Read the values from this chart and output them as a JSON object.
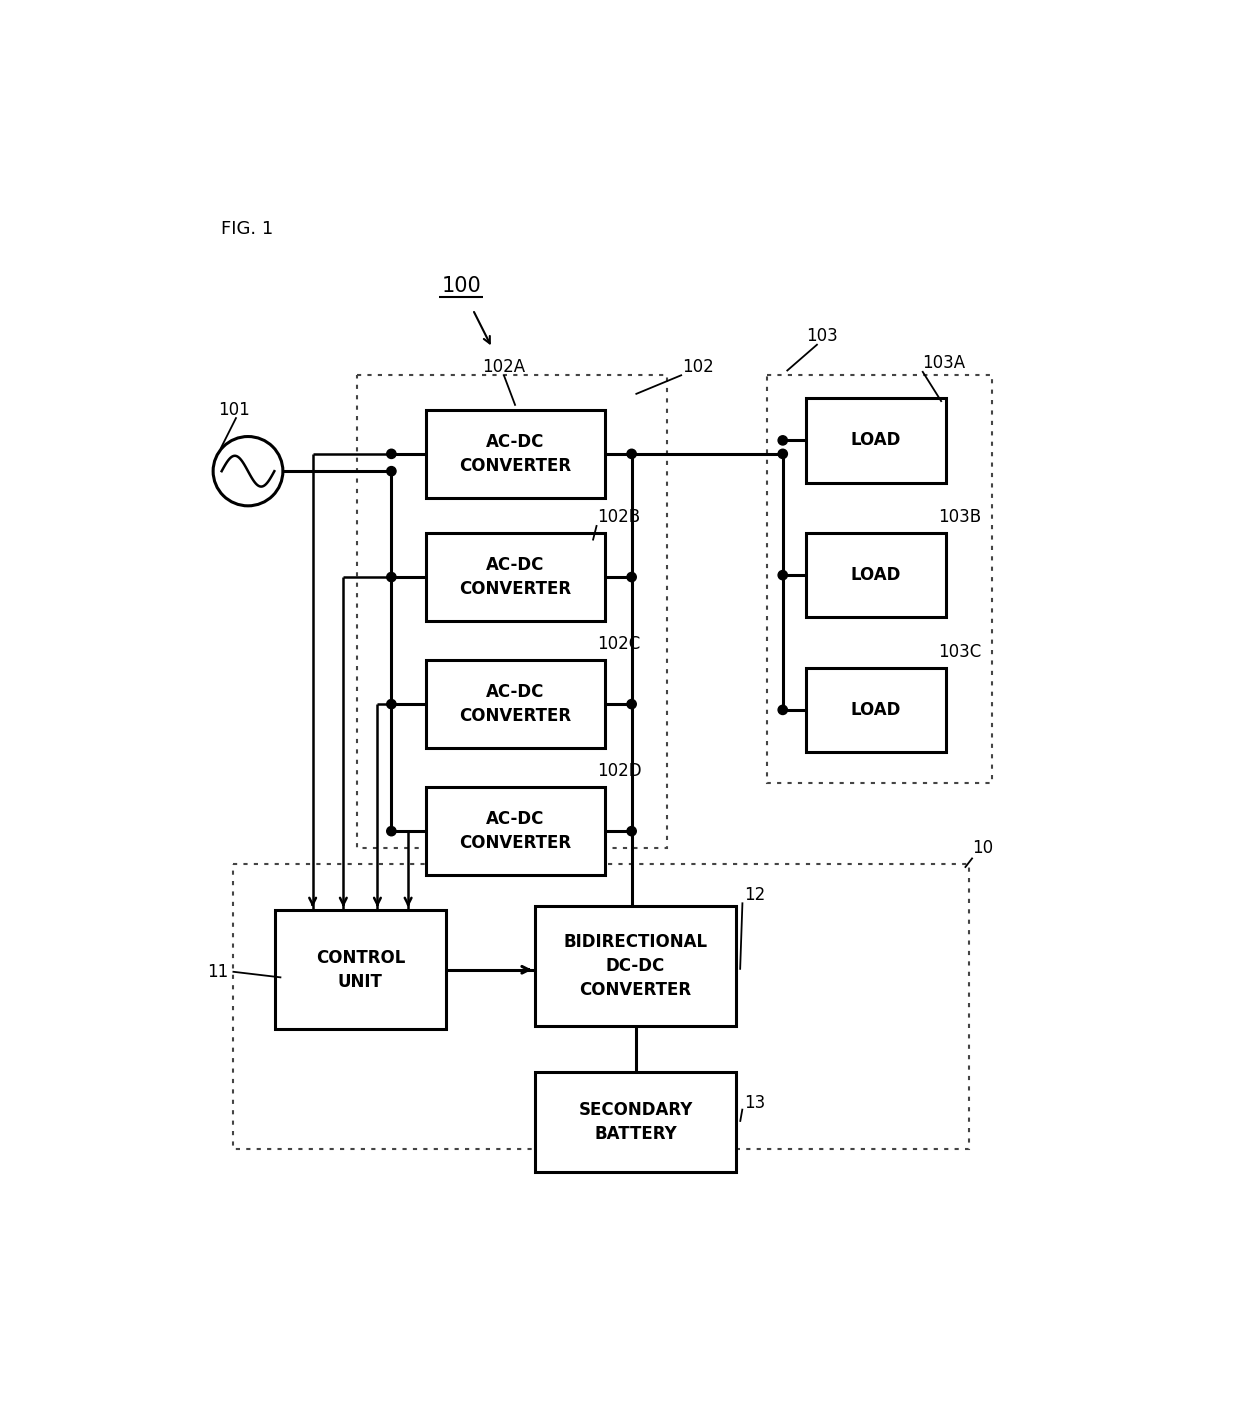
{
  "fig_label": "FIG. 1",
  "bg_color": "#ffffff",
  "line_color": "#000000",
  "figsize": [
    12.4,
    14.24
  ],
  "dpi": 100,
  "label_100": "100",
  "label_101": "101",
  "label_102": "102",
  "label_102A": "102A",
  "label_102B": "102B",
  "label_102C": "102C",
  "label_102D": "102D",
  "label_103": "103",
  "label_103A": "103A",
  "label_103B": "103B",
  "label_103C": "103C",
  "label_10": "10",
  "label_11": "11",
  "label_12": "12",
  "label_13": "13",
  "text_acdc": "AC-DC\nCONVERTER",
  "text_load": "LOAD",
  "text_control": "CONTROL\nUNIT",
  "text_bidir": "BIDIRECTIONAL\nDC-DC\nCONVERTER",
  "text_battery": "SECONDARY\nBATTERY",
  "font_size_box": 12,
  "font_size_label": 12,
  "font_size_fig": 13
}
